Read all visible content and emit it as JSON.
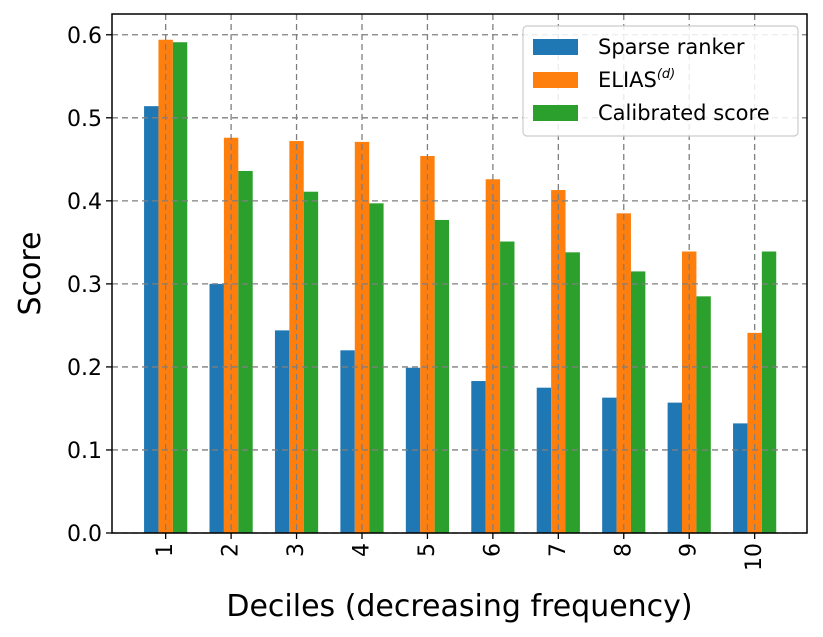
{
  "chart_data": {
    "type": "bar",
    "title": "",
    "xlabel": "Deciles (decreasing frequency)",
    "ylabel": "Score",
    "categories": [
      "1",
      "2",
      "3",
      "4",
      "5",
      "6",
      "7",
      "8",
      "9",
      "10"
    ],
    "ylim": [
      0,
      0.625
    ],
    "yticks": [
      "0.0",
      "0.1",
      "0.2",
      "0.3",
      "0.4",
      "0.5",
      "0.6"
    ],
    "grid": true,
    "legend_position": "top-right",
    "series": [
      {
        "name": "Sparse ranker",
        "color": "#1f77b4",
        "values": [
          0.514,
          0.3,
          0.244,
          0.22,
          0.199,
          0.183,
          0.175,
          0.163,
          0.157,
          0.132
        ]
      },
      {
        "name": "ELIAS",
        "name_superscript": "(d)",
        "color": "#ff7f0e",
        "values": [
          0.594,
          0.476,
          0.472,
          0.471,
          0.454,
          0.426,
          0.413,
          0.385,
          0.339,
          0.241
        ]
      },
      {
        "name": "Calibrated score",
        "color": "#2ca02c",
        "values": [
          0.591,
          0.436,
          0.411,
          0.397,
          0.377,
          0.351,
          0.338,
          0.315,
          0.285,
          0.339
        ]
      }
    ]
  }
}
